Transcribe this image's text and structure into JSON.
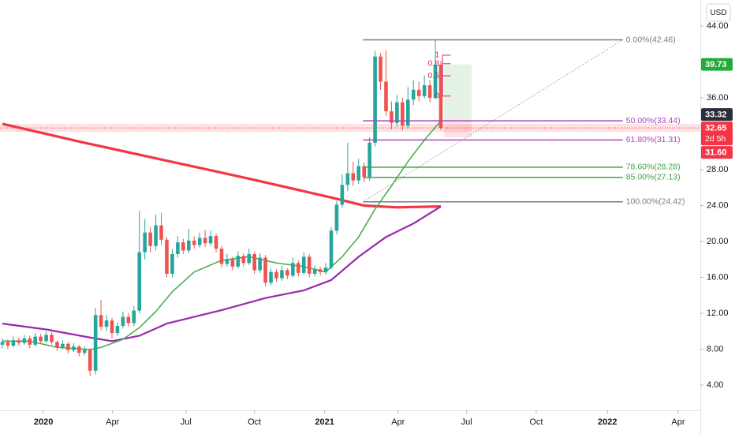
{
  "chart_data": {
    "type": "candlestick",
    "currency": "USD",
    "up_color": "#26a69a",
    "down_color": "#ef5350",
    "xlim": [
      -0.43,
      127.34
    ],
    "ylim": [
      1.19,
      46.9
    ],
    "xticks": [
      {
        "value": 7.5,
        "label": "2020"
      },
      {
        "value": 20.1,
        "label": "Apr"
      },
      {
        "value": 33.5,
        "label": "Jul"
      },
      {
        "value": 46.0,
        "label": "Oct"
      },
      {
        "value": 58.8,
        "label": "2021"
      },
      {
        "value": 72.2,
        "label": "Apr"
      },
      {
        "value": 84.7,
        "label": "Jul"
      },
      {
        "value": 97.4,
        "label": "Oct"
      },
      {
        "value": 110.4,
        "label": "2022"
      },
      {
        "value": 123.3,
        "label": "Apr"
      }
    ],
    "yticks": [
      {
        "value": 44,
        "label": "44.00"
      },
      {
        "value": 36,
        "label": "36.00"
      },
      {
        "value": 28,
        "label": "28.00"
      },
      {
        "value": 24,
        "label": "24.00"
      },
      {
        "value": 20,
        "label": "20.00"
      },
      {
        "value": 16,
        "label": "16.00"
      },
      {
        "value": 12,
        "label": "12.00"
      },
      {
        "value": 8,
        "label": "8.00"
      },
      {
        "value": 4,
        "label": "4.00"
      }
    ],
    "grid": false,
    "candles": [
      [
        8.5,
        9.2,
        8.1,
        8.8
      ],
      [
        8.8,
        9.1,
        8.0,
        8.4
      ],
      [
        8.4,
        9.4,
        8.2,
        9.0
      ],
      [
        9.0,
        9.3,
        8.4,
        8.7
      ],
      [
        8.7,
        9.6,
        8.5,
        9.2
      ],
      [
        9.2,
        9.5,
        8.1,
        8.5
      ],
      [
        8.5,
        9.8,
        8.3,
        9.4
      ],
      [
        9.4,
        9.7,
        8.6,
        8.9
      ],
      [
        8.9,
        10.0,
        8.7,
        9.6
      ],
      [
        9.6,
        9.9,
        8.5,
        8.8
      ],
      [
        8.8,
        9.0,
        7.8,
        8.2
      ],
      [
        8.2,
        9.0,
        8.0,
        8.6
      ],
      [
        8.6,
        8.8,
        7.5,
        7.9
      ],
      [
        7.9,
        8.7,
        7.7,
        8.3
      ],
      [
        8.3,
        8.5,
        7.2,
        7.6
      ],
      [
        7.6,
        8.3,
        7.3,
        7.9
      ],
      [
        7.9,
        8.1,
        5.0,
        5.6
      ],
      [
        5.6,
        12.6,
        5.2,
        11.8
      ],
      [
        11.8,
        13.5,
        10.1,
        10.5
      ],
      [
        10.5,
        11.8,
        10.0,
        11.2
      ],
      [
        11.2,
        11.5,
        9.2,
        9.8
      ],
      [
        9.8,
        11.0,
        9.5,
        10.6
      ],
      [
        10.6,
        12.2,
        10.3,
        11.6
      ],
      [
        11.6,
        12.0,
        10.5,
        10.9
      ],
      [
        10.9,
        12.8,
        10.6,
        12.3
      ],
      [
        12.3,
        23.4,
        12.0,
        18.8
      ],
      [
        18.8,
        22.5,
        18.0,
        21.0
      ],
      [
        21.0,
        21.6,
        18.8,
        19.5
      ],
      [
        19.5,
        23.0,
        19.0,
        21.8
      ],
      [
        21.8,
        23.2,
        19.6,
        20.2
      ],
      [
        20.2,
        20.5,
        16.0,
        16.4
      ],
      [
        16.4,
        19.2,
        16.0,
        18.6
      ],
      [
        18.6,
        20.6,
        18.2,
        19.9
      ],
      [
        19.9,
        20.3,
        18.6,
        19.0
      ],
      [
        19.0,
        21.4,
        18.7,
        20.1
      ],
      [
        20.1,
        20.6,
        19.2,
        19.6
      ],
      [
        19.6,
        21.0,
        19.3,
        20.4
      ],
      [
        20.4,
        21.3,
        19.4,
        19.8
      ],
      [
        19.8,
        21.2,
        19.5,
        20.6
      ],
      [
        20.6,
        20.9,
        18.8,
        19.2
      ],
      [
        19.2,
        19.5,
        17.1,
        17.5
      ],
      [
        17.5,
        18.6,
        17.2,
        18.0
      ],
      [
        18.0,
        18.3,
        16.8,
        17.2
      ],
      [
        17.2,
        18.9,
        17.0,
        18.4
      ],
      [
        18.4,
        18.7,
        17.2,
        17.6
      ],
      [
        17.6,
        19.2,
        17.4,
        18.6
      ],
      [
        18.6,
        18.9,
        16.4,
        16.8
      ],
      [
        16.8,
        18.7,
        16.5,
        18.2
      ],
      [
        18.2,
        18.5,
        15.0,
        15.4
      ],
      [
        15.4,
        17.0,
        15.1,
        16.6
      ],
      [
        16.6,
        16.9,
        15.5,
        15.9
      ],
      [
        15.9,
        17.3,
        15.6,
        16.8
      ],
      [
        16.8,
        17.0,
        15.8,
        16.2
      ],
      [
        16.2,
        18.2,
        16.0,
        17.6
      ],
      [
        17.6,
        17.9,
        16.1,
        16.5
      ],
      [
        16.5,
        18.8,
        16.3,
        18.3
      ],
      [
        18.3,
        18.6,
        16.0,
        16.4
      ],
      [
        16.4,
        17.3,
        16.1,
        16.9
      ],
      [
        16.9,
        17.2,
        16.2,
        16.6
      ],
      [
        16.6,
        17.6,
        16.3,
        17.1
      ],
      [
        17.1,
        21.6,
        16.9,
        21.2
      ],
      [
        21.2,
        24.5,
        20.8,
        24.1
      ],
      [
        24.1,
        27.5,
        23.8,
        26.3
      ],
      [
        26.3,
        31.0,
        25.6,
        27.6
      ],
      [
        27.6,
        28.9,
        26.2,
        26.8
      ],
      [
        26.8,
        29.2,
        26.4,
        28.4
      ],
      [
        28.4,
        28.8,
        26.6,
        27.2
      ],
      [
        27.2,
        31.6,
        26.8,
        31.0
      ],
      [
        31.0,
        41.2,
        30.6,
        40.6
      ],
      [
        40.6,
        41.0,
        36.9,
        37.8
      ],
      [
        37.8,
        41.3,
        34.0,
        34.5
      ],
      [
        34.5,
        35.6,
        32.5,
        33.2
      ],
      [
        33.2,
        36.3,
        32.8,
        35.5
      ],
      [
        35.5,
        36.0,
        32.4,
        32.9
      ],
      [
        32.9,
        37.2,
        32.6,
        35.8
      ],
      [
        35.8,
        38.0,
        35.2,
        36.9
      ],
      [
        36.9,
        37.8,
        35.6,
        36.2
      ],
      [
        36.2,
        38.5,
        35.9,
        37.4
      ],
      [
        37.4,
        38.0,
        35.5,
        36.0
      ],
      [
        36.0,
        42.46,
        35.8,
        39.7
      ],
      [
        39.7,
        40.1,
        32.4,
        32.65
      ]
    ],
    "lines": [
      {
        "color": "#f23645",
        "width": 3.2,
        "x": [
          0,
          15,
          30,
          45,
          60,
          66,
          72,
          80
        ],
        "values": [
          33.1,
          31.0,
          29.0,
          27.0,
          24.9,
          24.0,
          23.8,
          23.9
        ]
      },
      {
        "color": "#9c27b0",
        "width": 2.2,
        "x": [
          0,
          8,
          16,
          20,
          25,
          30,
          40,
          48,
          55,
          60,
          65,
          70,
          75,
          80
        ],
        "values": [
          10.85,
          10.2,
          9.3,
          8.9,
          9.5,
          10.85,
          12.35,
          13.7,
          14.55,
          15.7,
          18.3,
          20.5,
          22.0,
          23.9
        ]
      },
      {
        "color": "#4caf50",
        "width": 1.6,
        "x": [
          0,
          5,
          10,
          16,
          18,
          22,
          25,
          28,
          31,
          35,
          40,
          45,
          50,
          55,
          59,
          62,
          65,
          68,
          71,
          74,
          77,
          80
        ],
        "values": [
          8.9,
          8.9,
          8.2,
          7.95,
          8.2,
          9.1,
          10.4,
          12.2,
          14.4,
          16.6,
          17.9,
          18.3,
          17.6,
          17.2,
          16.6,
          18.3,
          20.5,
          23.6,
          26.2,
          28.9,
          31.3,
          33.45
        ]
      }
    ],
    "fib": {
      "x": [
        65.8,
        113.2
      ],
      "levels": [
        {
          "value": 42.46,
          "label": "0.00%(42.46)",
          "color": "#787b86"
        },
        {
          "value": 33.44,
          "label": "50.00%(33.44)",
          "color": "#ab47bc"
        },
        {
          "value": 31.31,
          "label": "61.80%(31.31)",
          "color": "#ab47bc"
        },
        {
          "value": 28.28,
          "label": "78.60%(28.28)",
          "color": "#43a047"
        },
        {
          "value": 27.13,
          "label": "85.00%(27.13)",
          "color": "#43a047"
        },
        {
          "value": 24.42,
          "label": "100.00%(24.42)",
          "color": "#787b86"
        }
      ]
    },
    "fib_small": {
      "color": "#e91e63",
      "x": [
        80.3,
        81.8
      ],
      "levels": [
        1,
        0.8,
        0.5,
        0
      ],
      "prices": [
        40.75,
        39.8,
        38.46,
        36.2
      ]
    },
    "position": {
      "x": [
        80.6,
        85.6
      ],
      "target": 39.73,
      "entry": 33.32,
      "stop": 31.6
    },
    "price_tags": [
      {
        "value": 39.73,
        "color": "#22ab3a"
      },
      {
        "value": 33.32,
        "color": "#2a2e39"
      },
      {
        "value": 32.65,
        "color": "#f23645",
        "countdown": "2d 5h"
      },
      {
        "value": {
          "value": 31.6,
          "label": "31.60"
        },
        "color": "#f23645"
      }
    ]
  }
}
